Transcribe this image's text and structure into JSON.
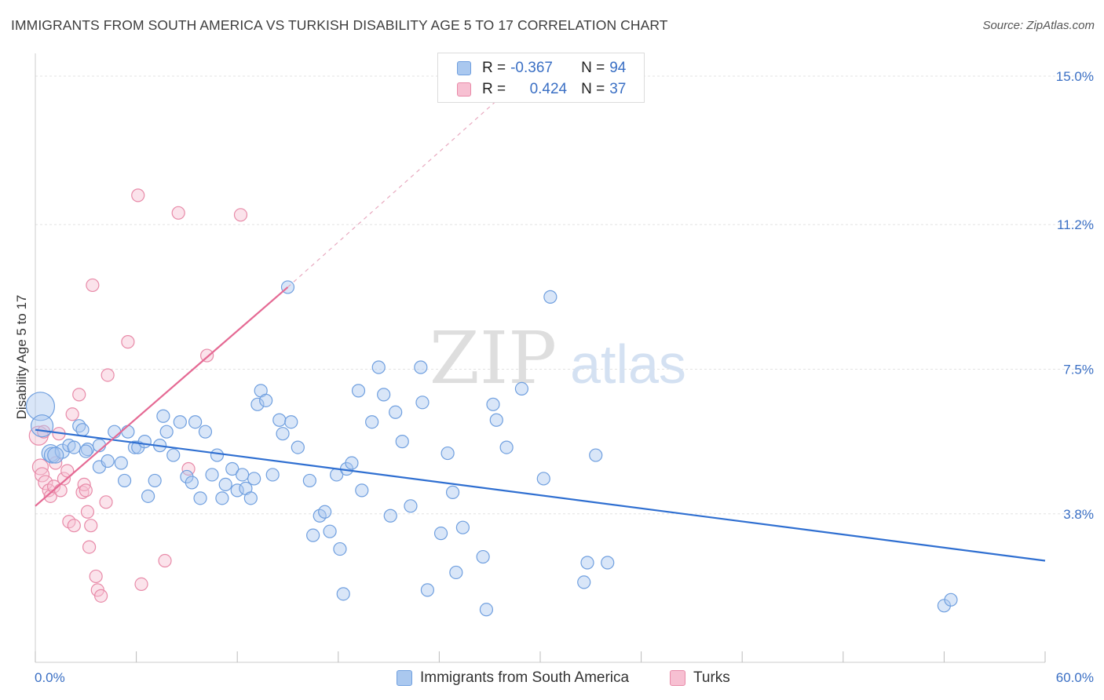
{
  "title": "IMMIGRANTS FROM SOUTH AMERICA VS TURKISH DISABILITY AGE 5 TO 17 CORRELATION CHART",
  "source": "Source: ZipAtlas.com",
  "watermark": {
    "zip": "ZIP",
    "atlas": "atlas"
  },
  "legend": {
    "rows": [
      {
        "r_label": "R =",
        "r_value": "-0.367",
        "n_label": "N =",
        "n_value": "94",
        "color": "#aac8ef",
        "border": "#6f9fdf"
      },
      {
        "r_label": "R =",
        "r_value": "0.424",
        "n_label": "N =",
        "n_value": "37",
        "color": "#f7c0d2",
        "border": "#e88aa8"
      }
    ]
  },
  "bottom_legend": [
    {
      "label": "Immigrants from South America",
      "color": "#aac8ef",
      "border": "#6f9fdf"
    },
    {
      "label": "Turks",
      "color": "#f7c0d2",
      "border": "#e88aa8"
    }
  ],
  "colors": {
    "blue_fill": "#aac8ef",
    "blue_stroke": "#6f9fdf",
    "blue_line": "#2f6fd1",
    "pink_fill": "#f7c0d2",
    "pink_stroke": "#e88aa8",
    "pink_line": "#e56a94",
    "axis_text": "#3a6fc4",
    "grid": "#e3e3e3"
  },
  "chart_data": {
    "type": "scatter",
    "title": "IMMIGRANTS FROM SOUTH AMERICA VS TURKISH DISABILITY AGE 5 TO 17 CORRELATION CHART",
    "xlabel": "",
    "ylabel": "Disability Age 5 to 17",
    "xlim": [
      0,
      60
    ],
    "ylim": [
      0,
      15.5
    ],
    "x_tick_labels": [
      "0.0%",
      "60.0%"
    ],
    "y_ticks": [
      3.8,
      7.5,
      11.2,
      15.0
    ],
    "y_tick_labels": [
      "3.8%",
      "7.5%",
      "11.2%",
      "15.0%"
    ],
    "grid": true,
    "legend_position": "top-center",
    "series": [
      {
        "name": "Immigrants from South America",
        "trend": {
          "x0": 0,
          "y0": 5.95,
          "x1": 60,
          "y1": 2.6
        },
        "points": [
          [
            0.3,
            6.55,
            18
          ],
          [
            0.4,
            6.05,
            14
          ],
          [
            0.9,
            5.35,
            11
          ],
          [
            1.0,
            5.3,
            10
          ],
          [
            1.6,
            5.4,
            9
          ],
          [
            2.0,
            5.55,
            8
          ],
          [
            2.3,
            5.5,
            8
          ],
          [
            2.6,
            6.05,
            8
          ],
          [
            2.8,
            5.95,
            8
          ],
          [
            3.1,
            5.45,
            8
          ],
          [
            3.8,
            5.55,
            8
          ],
          [
            3.8,
            5.0,
            8
          ],
          [
            4.3,
            5.15,
            8
          ],
          [
            4.7,
            5.9,
            8
          ],
          [
            5.1,
            5.1,
            8
          ],
          [
            5.3,
            4.65,
            8
          ],
          [
            5.5,
            5.9,
            8
          ],
          [
            5.9,
            5.5,
            8
          ],
          [
            6.1,
            5.5,
            8
          ],
          [
            6.5,
            5.65,
            8
          ],
          [
            6.7,
            4.25,
            8
          ],
          [
            7.1,
            4.65,
            8
          ],
          [
            7.4,
            5.55,
            8
          ],
          [
            7.8,
            5.9,
            8
          ],
          [
            7.6,
            6.3,
            8
          ],
          [
            8.2,
            5.3,
            8
          ],
          [
            8.6,
            6.15,
            8
          ],
          [
            9.0,
            4.75,
            8
          ],
          [
            9.3,
            4.6,
            8
          ],
          [
            9.5,
            6.15,
            8
          ],
          [
            9.8,
            4.2,
            8
          ],
          [
            10.1,
            5.9,
            8
          ],
          [
            10.5,
            4.8,
            8
          ],
          [
            10.8,
            5.3,
            8
          ],
          [
            11.1,
            4.2,
            8
          ],
          [
            11.3,
            4.55,
            8
          ],
          [
            11.7,
            4.95,
            8
          ],
          [
            12.0,
            4.4,
            8
          ],
          [
            12.3,
            4.8,
            8
          ],
          [
            12.5,
            4.45,
            8
          ],
          [
            12.8,
            4.2,
            8
          ],
          [
            13.0,
            4.7,
            8
          ],
          [
            13.2,
            6.6,
            8
          ],
          [
            13.4,
            6.95,
            8
          ],
          [
            13.7,
            6.7,
            8
          ],
          [
            14.1,
            4.8,
            8
          ],
          [
            14.5,
            6.2,
            8
          ],
          [
            14.7,
            5.85,
            8
          ],
          [
            15.0,
            9.6,
            8
          ],
          [
            15.2,
            6.15,
            8
          ],
          [
            15.6,
            5.5,
            8
          ],
          [
            16.3,
            4.65,
            8
          ],
          [
            16.5,
            3.25,
            8
          ],
          [
            16.9,
            3.75,
            8
          ],
          [
            17.2,
            3.85,
            8
          ],
          [
            17.5,
            3.35,
            8
          ],
          [
            17.9,
            4.8,
            8
          ],
          [
            18.1,
            2.9,
            8
          ],
          [
            18.3,
            1.75,
            8
          ],
          [
            18.5,
            4.95,
            8
          ],
          [
            18.8,
            5.1,
            8
          ],
          [
            19.2,
            6.95,
            8
          ],
          [
            19.4,
            4.4,
            8
          ],
          [
            20.0,
            6.15,
            8
          ],
          [
            20.4,
            7.55,
            8
          ],
          [
            20.7,
            6.85,
            8
          ],
          [
            21.1,
            3.75,
            8
          ],
          [
            21.4,
            6.4,
            8
          ],
          [
            21.8,
            5.65,
            8
          ],
          [
            22.3,
            4.0,
            8
          ],
          [
            22.9,
            7.55,
            8
          ],
          [
            23.0,
            6.65,
            8
          ],
          [
            23.3,
            1.85,
            8
          ],
          [
            24.1,
            3.3,
            8
          ],
          [
            24.5,
            5.35,
            8
          ],
          [
            24.8,
            4.35,
            8
          ],
          [
            25.0,
            2.3,
            8
          ],
          [
            25.4,
            3.45,
            8
          ],
          [
            26.6,
            2.7,
            8
          ],
          [
            26.8,
            1.35,
            8
          ],
          [
            27.2,
            6.6,
            8
          ],
          [
            27.4,
            6.2,
            8
          ],
          [
            28.0,
            5.5,
            8
          ],
          [
            28.9,
            7.0,
            8
          ],
          [
            30.2,
            4.7,
            8
          ],
          [
            30.6,
            9.35,
            8
          ],
          [
            32.6,
            2.05,
            8
          ],
          [
            32.8,
            2.55,
            8
          ],
          [
            33.3,
            5.3,
            8
          ],
          [
            34.0,
            2.55,
            8
          ],
          [
            54.0,
            1.45,
            8
          ],
          [
            54.4,
            1.6,
            8
          ],
          [
            1.2,
            5.3,
            10
          ],
          [
            3.0,
            5.4,
            8
          ]
        ]
      },
      {
        "name": "Turks",
        "trend": {
          "x0": 0,
          "y0": 4.0,
          "x1": 15.0,
          "y1": 9.6
        },
        "trend_extension": {
          "x1": 28.0,
          "y1": 14.6
        },
        "points": [
          [
            0.2,
            5.8,
            12
          ],
          [
            0.3,
            5.0,
            10
          ],
          [
            0.4,
            4.8,
            9
          ],
          [
            0.6,
            4.6,
            9
          ],
          [
            0.8,
            4.4,
            8
          ],
          [
            0.9,
            4.25,
            8
          ],
          [
            1.1,
            4.5,
            8
          ],
          [
            1.2,
            5.1,
            8
          ],
          [
            1.4,
            5.85,
            8
          ],
          [
            1.5,
            4.4,
            8
          ],
          [
            1.7,
            4.7,
            8
          ],
          [
            1.9,
            4.9,
            8
          ],
          [
            2.0,
            3.6,
            8
          ],
          [
            2.2,
            6.35,
            8
          ],
          [
            2.3,
            3.5,
            8
          ],
          [
            2.6,
            6.85,
            8
          ],
          [
            2.8,
            4.35,
            8
          ],
          [
            2.9,
            4.55,
            8
          ],
          [
            3.0,
            4.4,
            8
          ],
          [
            3.1,
            3.85,
            8
          ],
          [
            3.2,
            2.95,
            8
          ],
          [
            3.3,
            3.5,
            8
          ],
          [
            3.4,
            9.65,
            8
          ],
          [
            3.6,
            2.2,
            8
          ],
          [
            3.7,
            1.85,
            8
          ],
          [
            3.9,
            1.7,
            8
          ],
          [
            4.2,
            4.1,
            8
          ],
          [
            4.3,
            7.35,
            8
          ],
          [
            5.5,
            8.2,
            8
          ],
          [
            6.1,
            11.95,
            8
          ],
          [
            6.3,
            2.0,
            8
          ],
          [
            7.7,
            2.6,
            8
          ],
          [
            8.5,
            11.5,
            8
          ],
          [
            9.1,
            4.95,
            8
          ],
          [
            10.2,
            7.85,
            8
          ],
          [
            12.2,
            11.45,
            8
          ],
          [
            0.5,
            5.9,
            8
          ]
        ]
      }
    ]
  }
}
